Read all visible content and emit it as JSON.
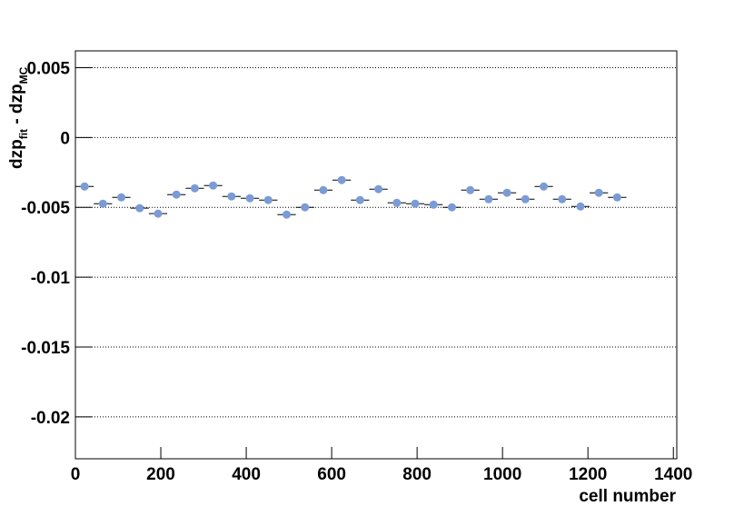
{
  "chart_data": {
    "type": "profile",
    "xlabel": "cell number",
    "ylabel": [
      "dzp",
      "fit",
      " - dzp",
      "MC"
    ],
    "x": [
      21.5,
      64.5,
      107.5,
      150.5,
      193.5,
      236.5,
      279.5,
      322.5,
      365.5,
      408.5,
      451.5,
      494.5,
      537.5,
      580.5,
      623.5,
      666.5,
      709.5,
      752.5,
      795.5,
      838.5,
      881.5,
      924.5,
      967.5,
      1010.5,
      1053.5,
      1096.5,
      1139.5,
      1182.5,
      1225.5,
      1268.5
    ],
    "xerr": 21.5,
    "values": [
      -0.00351,
      -0.00474,
      -0.00429,
      -0.00506,
      -0.00545,
      -0.00409,
      -0.00364,
      -0.00344,
      -0.00422,
      -0.00435,
      -0.00448,
      -0.00552,
      -0.005,
      -0.00377,
      -0.00305,
      -0.00448,
      -0.0037,
      -0.00468,
      -0.00474,
      -0.00481,
      -0.005,
      -0.00377,
      -0.00442,
      -0.00396,
      -0.00442,
      -0.00351,
      -0.00442,
      -0.00494,
      -0.00396,
      -0.00429
    ],
    "color": "#7b9bd6",
    "xlim": [
      0,
      1408
    ],
    "xticks": [
      0,
      200,
      400,
      600,
      800,
      1000,
      1200,
      1400
    ],
    "ylim": [
      -0.023,
      0.0062
    ],
    "yticks": [
      0.005,
      0,
      -0.005,
      -0.01,
      -0.015,
      -0.02
    ],
    "grid": true
  }
}
